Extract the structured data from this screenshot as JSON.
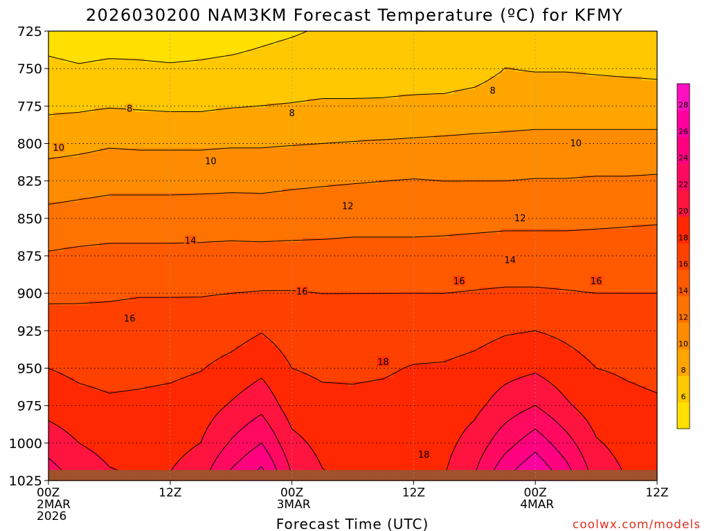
{
  "chart_data": {
    "type": "heatmap",
    "title": "2026030200 NAM3KM Forecast Temperature (ºC) for KFMY",
    "xlabel": "Forecast Time (UTC)",
    "ylabel": "",
    "credit": "coolwx.com/models",
    "x_hours": [
      0,
      3,
      6,
      9,
      12,
      15,
      18,
      21,
      24,
      27,
      30,
      33,
      36,
      39,
      42,
      45,
      48,
      51,
      54,
      57,
      60
    ],
    "xlim": [
      0,
      60
    ],
    "x_ticks": [
      {
        "hour": 0,
        "lines": [
          "00Z",
          "2MAR",
          "2026"
        ]
      },
      {
        "hour": 12,
        "lines": [
          "12Z"
        ]
      },
      {
        "hour": 24,
        "lines": [
          "00Z",
          "3MAR"
        ]
      },
      {
        "hour": 36,
        "lines": [
          "12Z"
        ]
      },
      {
        "hour": 48,
        "lines": [
          "00Z",
          "4MAR"
        ]
      },
      {
        "hour": 60,
        "lines": [
          "12Z"
        ]
      }
    ],
    "pressure_levels": [
      725,
      750,
      775,
      800,
      825,
      850,
      875,
      900,
      925,
      950,
      975,
      1000,
      1025
    ],
    "ylim": [
      725,
      1025
    ],
    "surface_pressure_hpa": 1018,
    "temperature_by_level": [
      {
        "level": 725,
        "values": [
          5.0,
          4.7,
          4.9,
          5.0,
          4.9,
          5.0,
          5.1,
          5.5,
          5.8,
          6.2,
          6.5,
          6.6,
          6.6,
          6.5,
          6.9,
          7.6,
          7.6,
          7.4,
          7.4,
          7.2,
          7.0
        ]
      },
      {
        "level": 750,
        "values": [
          6.5,
          6.2,
          6.4,
          6.3,
          6.2,
          6.3,
          6.5,
          6.7,
          7.0,
          7.2,
          7.2,
          7.3,
          7.3,
          7.2,
          7.4,
          8.0,
          7.9,
          7.9,
          7.8,
          7.7,
          7.6
        ]
      },
      {
        "level": 775,
        "values": [
          7.6,
          7.7,
          7.9,
          7.8,
          7.7,
          7.7,
          7.9,
          8.0,
          8.1,
          8.2,
          8.2,
          8.2,
          8.3,
          8.4,
          8.6,
          8.9,
          9.0,
          9.0,
          9.0,
          9.0,
          9.0
        ]
      },
      {
        "level": 800,
        "values": [
          9.3,
          9.5,
          9.8,
          9.7,
          9.7,
          9.7,
          9.8,
          9.8,
          9.9,
          10.0,
          10.1,
          10.2,
          10.3,
          10.4,
          10.5,
          10.5,
          10.6,
          10.6,
          10.6,
          10.6,
          10.6
        ]
      },
      {
        "level": 825,
        "values": [
          11.0,
          11.2,
          11.4,
          11.4,
          11.4,
          11.4,
          11.5,
          11.5,
          11.7,
          11.8,
          11.9,
          12.0,
          12.1,
          12.0,
          12.0,
          12.0,
          12.1,
          12.1,
          12.2,
          12.2,
          12.3
        ]
      },
      {
        "level": 850,
        "values": [
          12.6,
          12.8,
          13.0,
          13.0,
          13.0,
          13.1,
          13.1,
          13.0,
          13.0,
          13.1,
          13.2,
          13.2,
          13.2,
          13.3,
          13.4,
          13.5,
          13.5,
          13.5,
          13.6,
          13.7,
          13.8
        ]
      },
      {
        "level": 875,
        "values": [
          14.2,
          14.4,
          14.5,
          14.5,
          14.5,
          14.5,
          14.6,
          14.6,
          14.7,
          14.7,
          14.8,
          14.8,
          14.8,
          14.8,
          14.9,
          15.0,
          15.0,
          15.0,
          15.0,
          15.0,
          15.0
        ]
      },
      {
        "level": 900,
        "values": [
          15.6,
          15.7,
          15.8,
          15.9,
          15.9,
          15.9,
          16.0,
          16.1,
          16.1,
          16.0,
          16.0,
          16.0,
          16.0,
          16.0,
          16.1,
          16.2,
          16.2,
          16.1,
          16.0,
          16.0,
          16.0
        ]
      },
      {
        "level": 925,
        "values": [
          17.0,
          16.8,
          16.7,
          16.8,
          16.8,
          16.9,
          17.2,
          17.9,
          17.0,
          16.9,
          16.9,
          17.0,
          17.1,
          17.0,
          17.3,
          17.8,
          18.0,
          17.6,
          17.1,
          17.0,
          16.9
        ]
      },
      {
        "level": 950,
        "values": [
          18.0,
          17.6,
          17.4,
          17.5,
          17.6,
          17.9,
          18.6,
          19.5,
          18.0,
          17.7,
          17.7,
          17.8,
          18.1,
          18.2,
          18.6,
          19.3,
          19.7,
          18.8,
          18.0,
          17.8,
          17.6
        ]
      },
      {
        "level": 975,
        "values": [
          19.2,
          18.6,
          18.3,
          18.4,
          18.6,
          19.0,
          20.2,
          21.4,
          19.0,
          18.5,
          18.4,
          18.5,
          18.7,
          18.9,
          19.5,
          20.9,
          22.0,
          20.3,
          18.9,
          18.4,
          18.2
        ]
      },
      {
        "level": 1000,
        "values": [
          21.2,
          20.0,
          19.3,
          19.1,
          19.3,
          20.0,
          22.2,
          24.0,
          20.6,
          19.4,
          19.0,
          19.0,
          19.1,
          19.4,
          20.8,
          23.2,
          25.2,
          22.8,
          20.2,
          19.3,
          18.8
        ]
      },
      {
        "level": 1025,
        "values": [
          23.2,
          21.6,
          20.4,
          20.0,
          20.2,
          21.5,
          24.8,
          27.2,
          22.2,
          20.3,
          19.6,
          19.5,
          19.6,
          20.0,
          22.2,
          26.0,
          28.5,
          25.4,
          21.4,
          20.0,
          19.4
        ]
      }
    ],
    "contour_interval": 2,
    "contour_labels": [
      {
        "text": "8",
        "hour": 8.0,
        "level": 777
      },
      {
        "text": "8",
        "hour": 24.0,
        "level": 780
      },
      {
        "text": "8",
        "hour": 43.8,
        "level": 765
      },
      {
        "text": "10",
        "hour": 1.0,
        "level": 803
      },
      {
        "text": "10",
        "hour": 16.0,
        "level": 812
      },
      {
        "text": "10",
        "hour": 52.0,
        "level": 800
      },
      {
        "text": "12",
        "hour": 29.5,
        "level": 842
      },
      {
        "text": "12",
        "hour": 46.5,
        "level": 850
      },
      {
        "text": "12",
        "hour": 29.5,
        "level": 842
      },
      {
        "text": "14",
        "hour": 14.0,
        "level": 865
      },
      {
        "text": "14",
        "hour": 45.5,
        "level": 878
      },
      {
        "text": "16",
        "hour": 8.0,
        "level": 917
      },
      {
        "text": "16",
        "hour": 25.0,
        "level": 899
      },
      {
        "text": "16",
        "hour": 40.5,
        "level": 892
      },
      {
        "text": "16",
        "hour": 54.0,
        "level": 892
      },
      {
        "text": "18",
        "hour": 33.0,
        "level": 946
      },
      {
        "text": "18",
        "hour": 37.0,
        "level": 1008
      }
    ],
    "colorbar": {
      "levels": [
        4,
        6,
        8,
        10,
        12,
        14,
        16,
        18,
        20,
        22,
        24,
        26,
        28,
        30
      ],
      "labels": [
        "6",
        "8",
        "10",
        "12",
        "14",
        "16",
        "18",
        "20",
        "22",
        "24",
        "26",
        "28"
      ],
      "colors": [
        "#ffe000",
        "#ffc800",
        "#ffa500",
        "#ff8c00",
        "#ff7300",
        "#ff5a00",
        "#ff4100",
        "#ff2800",
        "#ff1440",
        "#ff0a60",
        "#ff0080",
        "#ff00a0",
        "#ff10c0"
      ]
    },
    "ground_color": "#a0522d"
  }
}
